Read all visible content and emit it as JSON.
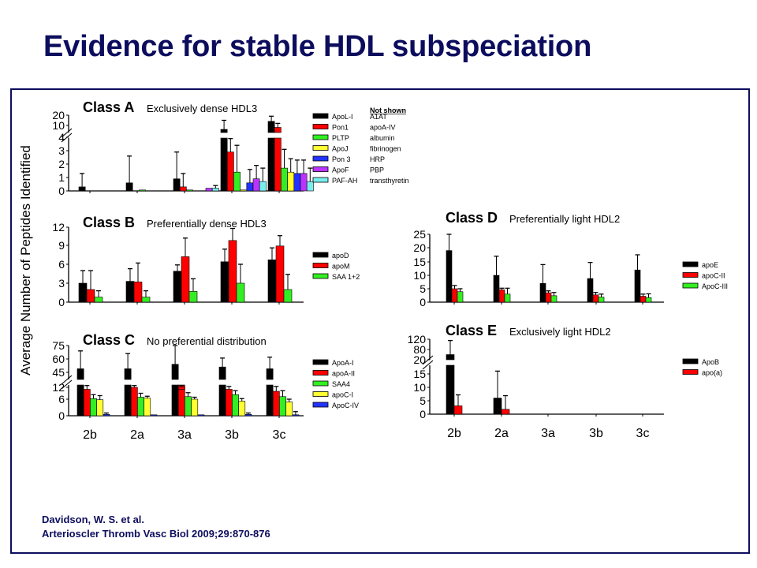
{
  "slide": {
    "title": "Evidence for stable HDL subspeciation",
    "citation_line1": "Davidson, W. S. et al.",
    "citation_line2": "Arterioscler  Thromb Vasc Biol 2009;29:870-876",
    "title_color": "#0d0d5e"
  },
  "figure": {
    "ylabel": "Average Number of Peptides Identified",
    "x_categories": [
      "2b",
      "2a",
      "3a",
      "3b",
      "3c"
    ]
  },
  "colors": {
    "black": "#000000",
    "red": "#ff0000",
    "green": "#33ee22",
    "yellow": "#ffff33",
    "blue": "#2233ff",
    "purple": "#bb33ff",
    "cyan": "#77eeee"
  },
  "chart_data": [
    {
      "type": "bar",
      "panel": "Class A",
      "title": "Class A",
      "subtitle": "Exclusively dense HDL3",
      "categories": [
        "2b",
        "2a",
        "3a",
        "3b",
        "3c"
      ],
      "yticks": [
        "0",
        "1",
        "2",
        "3",
        "4",
        "10",
        "20"
      ],
      "axis_break": [
        4,
        10
      ],
      "ylim": [
        0,
        20
      ],
      "not_shown_title": "Not shown",
      "not_shown": [
        "A1AT",
        "apoA-IV",
        "albumin",
        "fibrinogen",
        "HRP",
        "PBP",
        "transthyretin"
      ],
      "series": [
        {
          "name": "ApoL-I",
          "color": "#000000",
          "values": [
            0.3,
            0.6,
            0.9,
            8,
            14
          ],
          "errors": [
            1.3,
            2.6,
            2.9,
            15,
            19
          ]
        },
        {
          "name": "Pon1",
          "color": "#ff0000",
          "values": [
            0,
            0,
            0.3,
            2.9,
            9
          ],
          "errors": [
            0,
            0,
            1.3,
            3.9,
            12
          ]
        },
        {
          "name": "PLTP",
          "color": "#33ee22",
          "values": [
            0,
            0.05,
            0.05,
            1.4,
            1.7
          ],
          "errors": [
            0,
            0,
            0,
            3.4,
            3.1
          ]
        },
        {
          "name": "ApoJ",
          "color": "#ffff33",
          "values": [
            0,
            0,
            0,
            0.05,
            1.4
          ],
          "errors": [
            0,
            0,
            0,
            0,
            2.4
          ]
        },
        {
          "name": "Pon 3",
          "color": "#2233ff",
          "values": [
            0,
            0,
            0,
            0.6,
            1.3
          ],
          "errors": [
            0,
            0,
            0,
            1.6,
            2.3
          ]
        },
        {
          "name": "ApoF",
          "color": "#bb33ff",
          "values": [
            0,
            0,
            0.2,
            0.9,
            1.3
          ],
          "errors": [
            0,
            0,
            0,
            1.9,
            2.3
          ]
        },
        {
          "name": "PAF-AH",
          "color": "#77eeee",
          "values": [
            0,
            0,
            0.2,
            0.7,
            0.7
          ],
          "errors": [
            0,
            0,
            0.4,
            1.7,
            1.7
          ]
        }
      ]
    },
    {
      "type": "bar",
      "panel": "Class B",
      "title": "Class B",
      "subtitle": "Preferentially dense HDL3",
      "categories": [
        "2b",
        "2a",
        "3a",
        "3b",
        "3c"
      ],
      "yticks": [
        "0",
        "3",
        "6",
        "9",
        "12"
      ],
      "ylim": [
        0,
        12
      ],
      "series": [
        {
          "name": "apoD",
          "color": "#000000",
          "values": [
            3.0,
            3.3,
            4.9,
            6.4,
            6.7
          ],
          "errors": [
            5.0,
            5.3,
            5.9,
            8.4,
            8.6
          ]
        },
        {
          "name": "apoM",
          "color": "#ff0000",
          "values": [
            2.0,
            3.2,
            7.2,
            9.8,
            8.9
          ],
          "errors": [
            5.0,
            6.2,
            10.2,
            11.8,
            10.6
          ]
        },
        {
          "name": "SAA 1+2",
          "color": "#33ee22",
          "values": [
            0.8,
            0.8,
            1.7,
            3.0,
            2.0
          ],
          "errors": [
            1.8,
            1.8,
            3.7,
            6.0,
            4.4
          ]
        }
      ]
    },
    {
      "type": "bar",
      "panel": "Class C",
      "title": "Class C",
      "subtitle": "No preferential distribution",
      "categories": [
        "2b",
        "2a",
        "3a",
        "3b",
        "3c"
      ],
      "yticks": [
        "0",
        "6",
        "12",
        "45",
        "60",
        "75"
      ],
      "axis_break": [
        12,
        45
      ],
      "ylim": [
        0,
        75
      ],
      "series": [
        {
          "name": "ApoA-I",
          "color": "#000000",
          "values": [
            49,
            49,
            54,
            51,
            49
          ],
          "errors": [
            69,
            66,
            77,
            61,
            62
          ]
        },
        {
          "name": "apoA-II",
          "color": "#ff0000",
          "values": [
            11,
            12,
            13,
            11,
            10
          ],
          "errors": [
            16,
            16,
            16,
            14,
            14
          ]
        },
        {
          "name": "SAA4",
          "color": "#33ee22",
          "values": [
            6.3,
            7.0,
            7.3,
            8.3,
            7.3
          ],
          "errors": [
            8.3,
            9.0,
            9.3,
            10.3,
            10.3
          ]
        },
        {
          "name": "apoC-I",
          "color": "#ffff33",
          "values": [
            5.8,
            6.5,
            6.0,
            5.3,
            5.0
          ],
          "errors": [
            7.8,
            7.5,
            7.0,
            6.3,
            6.0
          ]
        },
        {
          "name": "ApoC-IV",
          "color": "#2233ff",
          "values": [
            0.5,
            0.2,
            0.2,
            0.5,
            0.3
          ],
          "errors": [
            1.0,
            0,
            0,
            1.0,
            1.5
          ]
        }
      ]
    },
    {
      "type": "bar",
      "panel": "Class D",
      "title": "Class D",
      "subtitle": "Preferentially light HDL2",
      "categories": [
        "2b",
        "2a",
        "3a",
        "3b",
        "3c"
      ],
      "yticks": [
        "0",
        "5",
        "10",
        "15",
        "20",
        "25"
      ],
      "ylim": [
        0,
        25
      ],
      "series": [
        {
          "name": "apoE",
          "color": "#000000",
          "values": [
            19,
            10,
            7,
            8.8,
            12
          ],
          "errors": [
            27,
            17,
            14,
            14.8,
            17.5
          ]
        },
        {
          "name": "apoC-II",
          "color": "#ff0000",
          "values": [
            5.0,
            4.6,
            3.5,
            2.7,
            2.2
          ],
          "errors": [
            6.2,
            5.2,
            4.2,
            3.6,
            3.0
          ]
        },
        {
          "name": "ApoC-III",
          "color": "#33ee22",
          "values": [
            3.9,
            3.0,
            2.4,
            1.9,
            1.7
          ],
          "errors": [
            5.0,
            5.2,
            3.6,
            3.0,
            3.1
          ]
        }
      ]
    },
    {
      "type": "bar",
      "panel": "Class E",
      "title": "Class E",
      "subtitle": "Exclusively light HDL2",
      "categories": [
        "2b",
        "2a",
        "3a",
        "3b",
        "3c"
      ],
      "yticks": [
        "0",
        "5",
        "10",
        "15",
        "20",
        "80",
        "120"
      ],
      "axis_break": [
        20,
        80
      ],
      "ylim": [
        0,
        120
      ],
      "series": [
        {
          "name": "ApoB",
          "color": "#000000",
          "values": [
            50,
            6,
            0,
            0,
            0
          ],
          "errors": [
            115,
            16,
            0,
            0,
            0
          ]
        },
        {
          "name": "apo(a)",
          "color": "#ff0000",
          "values": [
            3.1,
            1.8,
            0,
            0,
            0
          ],
          "errors": [
            7.2,
            6.9,
            0,
            0,
            0
          ]
        }
      ]
    }
  ]
}
